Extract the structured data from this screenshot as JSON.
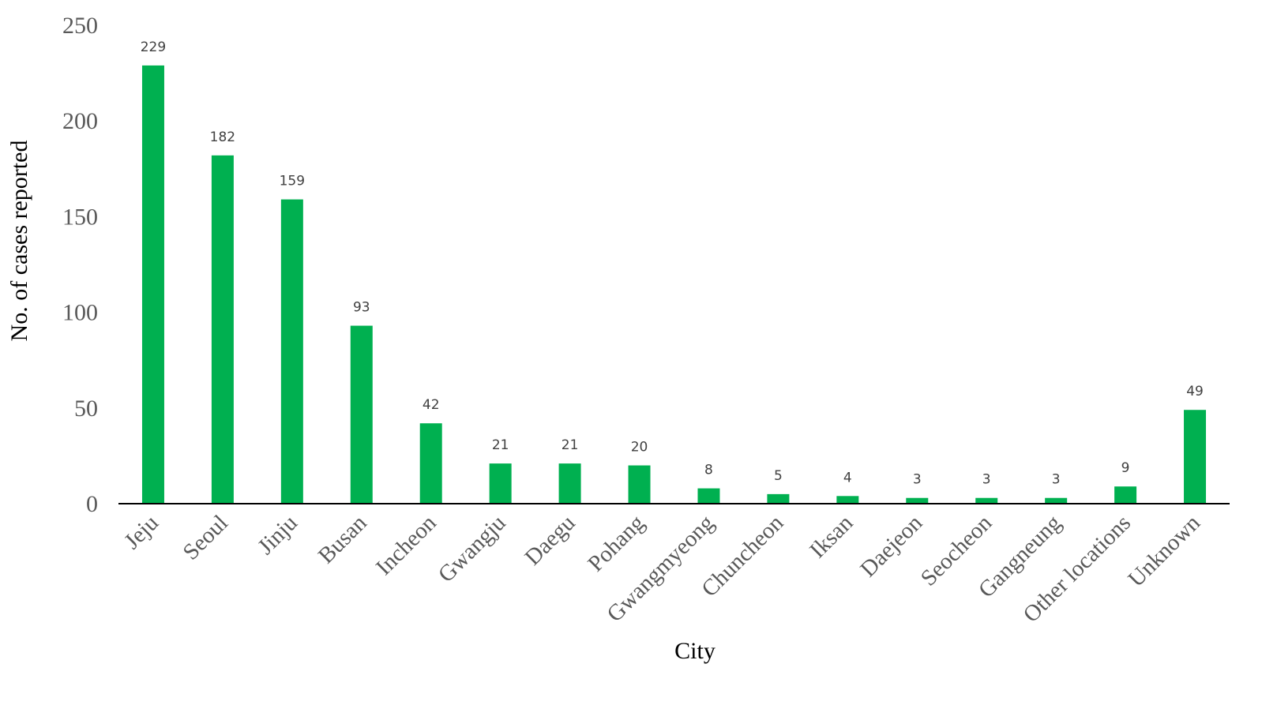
{
  "chart_data": {
    "type": "bar",
    "title": "",
    "xlabel": "City",
    "ylabel": "No. of cases reported",
    "ylim": [
      0,
      250
    ],
    "yticks": [
      "0",
      "50",
      "100",
      "150",
      "200",
      "250"
    ],
    "grid": false,
    "legend": "none",
    "bar_color": "#00B050",
    "categories": [
      "Jeju",
      "Seoul",
      "Jinju",
      "Busan",
      "Incheon",
      "Gwangju",
      "Daegu",
      "Pohang",
      "Gwangmyeong",
      "Chuncheon",
      "Iksan",
      "Daejeon",
      "Seocheon",
      "Gangneung",
      "Other locations",
      "Unknown"
    ],
    "values": [
      229,
      182,
      159,
      93,
      42,
      21,
      21,
      20,
      8,
      5,
      4,
      3,
      3,
      3,
      9,
      49
    ],
    "data_labels": [
      "229",
      "182",
      "159",
      "93",
      "42",
      "21",
      "21",
      "20",
      "8",
      "5",
      "4",
      "3",
      "3",
      "3",
      "9",
      "49"
    ]
  }
}
